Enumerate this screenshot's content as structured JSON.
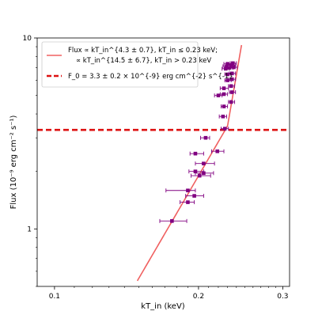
{
  "chart_data": {
    "type": "scatter",
    "xlabel": "kT_in (keV)",
    "ylabel": "Flux (10⁻⁹ erg cm⁻² s⁻¹)",
    "xscale": "log",
    "yscale": "log",
    "xlim": [
      0.092,
      0.31
    ],
    "ylim": [
      0.5,
      10
    ],
    "x_ticks": [
      {
        "value": 0.1,
        "label": "0.1"
      },
      {
        "value": 0.2,
        "label": "0.2"
      },
      {
        "value": 0.3,
        "label": "0.3"
      }
    ],
    "y_ticks": [
      {
        "value": 1,
        "label": "1"
      },
      {
        "value": 10,
        "label": "10"
      }
    ],
    "legend": {
      "placement": "upper-left",
      "model_line1": "Flux ∝ kT_in^{4.3 ± 0.7}, kT_in ≤ 0.23 keV;",
      "model_line2": "∝ kT_in^{14.5 ± 6.7}, kT_in > 0.23 keV",
      "threshold": "F_0 = 3.3 ± 0.2 × 10^{-9} erg cm^{-2} s^{-1}"
    },
    "series": [
      {
        "kind": "errorbar-points",
        "color": "#800080",
        "points": [
          {
            "x": 0.176,
            "y": 1.1,
            "xerr": [
              0.01,
              0.013
            ]
          },
          {
            "x": 0.19,
            "y": 1.38,
            "xerr": [
              0.007,
              0.006
            ]
          },
          {
            "x": 0.196,
            "y": 1.49,
            "xerr": [
              0.008,
              0.009
            ]
          },
          {
            "x": 0.19,
            "y": 1.59,
            "xerr": [
              0.019,
              0.007
            ]
          },
          {
            "x": 0.201,
            "y": 1.9,
            "xerr": [
              0.008,
              0.011
            ]
          },
          {
            "x": 0.205,
            "y": 1.96,
            "xerr": [
              0.008,
              0.01
            ]
          },
          {
            "x": 0.197,
            "y": 2.0,
            "xerr": [
              0.006,
              0.008
            ]
          },
          {
            "x": 0.205,
            "y": 2.2,
            "xerr": [
              0.008,
              0.011
            ]
          },
          {
            "x": 0.197,
            "y": 2.48,
            "xerr": [
              0.005,
              0.008
            ]
          },
          {
            "x": 0.219,
            "y": 2.55,
            "xerr": [
              0.006,
              0.007
            ]
          },
          {
            "x": 0.207,
            "y": 3.0,
            "xerr": [
              0.005,
              0.004
            ]
          },
          {
            "x": 0.227,
            "y": 3.35,
            "xerr": [
              0.004,
              0.004
            ]
          },
          {
            "x": 0.225,
            "y": 3.88,
            "xerr": [
              0.004,
              0.004
            ]
          },
          {
            "x": 0.226,
            "y": 4.38,
            "xerr": [
              0.003,
              0.004
            ]
          },
          {
            "x": 0.234,
            "y": 4.62,
            "xerr": [
              0.003,
              0.004
            ]
          },
          {
            "x": 0.22,
            "y": 5.0,
            "xerr": [
              0.004,
              0.004
            ]
          },
          {
            "x": 0.226,
            "y": 5.08,
            "xerr": [
              0.004,
              0.004
            ]
          },
          {
            "x": 0.226,
            "y": 5.45,
            "xerr": [
              0.004,
              0.005
            ]
          },
          {
            "x": 0.235,
            "y": 5.2,
            "xerr": [
              0.003,
              0.004
            ]
          },
          {
            "x": 0.234,
            "y": 5.6,
            "xerr": [
              0.003,
              0.004
            ]
          },
          {
            "x": 0.23,
            "y": 6.0,
            "xerr": [
              0.003,
              0.004
            ]
          },
          {
            "x": 0.235,
            "y": 6.08,
            "xerr": [
              0.003,
              0.004
            ]
          },
          {
            "x": 0.23,
            "y": 6.45,
            "xerr": [
              0.003,
              0.004
            ]
          },
          {
            "x": 0.235,
            "y": 6.52,
            "xerr": [
              0.003,
              0.004
            ]
          },
          {
            "x": 0.228,
            "y": 6.9,
            "xerr": [
              0.004,
              0.004
            ]
          },
          {
            "x": 0.232,
            "y": 6.98,
            "xerr": [
              0.004,
              0.004
            ]
          },
          {
            "x": 0.237,
            "y": 7.02,
            "xerr": [
              0.003,
              0.004
            ]
          },
          {
            "x": 0.229,
            "y": 7.1,
            "xerr": [
              0.004,
              0.005
            ]
          },
          {
            "x": 0.234,
            "y": 7.2,
            "xerr": [
              0.004,
              0.005
            ]
          },
          {
            "x": 0.23,
            "y": 7.32,
            "xerr": [
              0.004,
              0.005
            ]
          },
          {
            "x": 0.236,
            "y": 7.38,
            "xerr": [
              0.003,
              0.004
            ]
          }
        ]
      },
      {
        "kind": "broken-power-law",
        "color": "#f06060",
        "x_break": 0.23,
        "y_at_break": 3.46,
        "index_low": 4.3,
        "index_high": 14.5,
        "x_range": [
          0.149,
          0.246
        ]
      },
      {
        "kind": "horizontal-line",
        "color": "#dd1111",
        "style": "dashed",
        "y": 3.3
      }
    ]
  }
}
